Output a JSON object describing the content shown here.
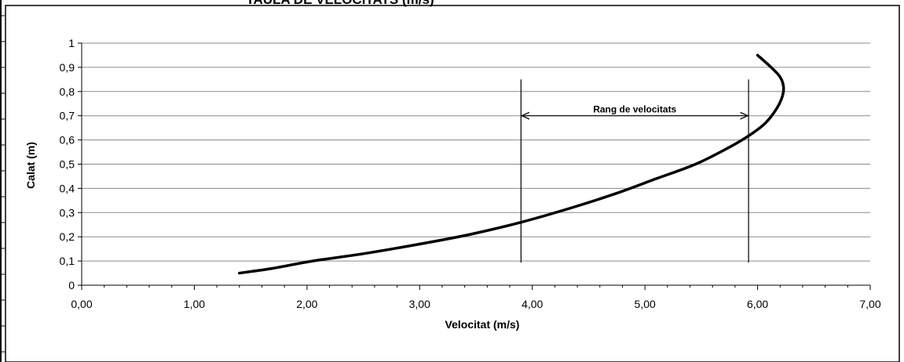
{
  "chart_data": {
    "type": "line",
    "title": "TAULA DE VELOCITATS (m/s)",
    "xlabel": "Velocitat (m/s)",
    "ylabel": "Calat (m)",
    "xlim": [
      0,
      7
    ],
    "ylim": [
      0,
      1
    ],
    "x_ticks": [
      "0,00",
      "1,00",
      "2,00",
      "3,00",
      "4,00",
      "5,00",
      "6,00",
      "7,00"
    ],
    "y_ticks": [
      "0",
      "0,1",
      "0,2",
      "0,3",
      "0,4",
      "0,5",
      "0,6",
      "0,7",
      "0,8",
      "0,9",
      "1"
    ],
    "grid": "horizontal",
    "legend": "none",
    "series": [
      {
        "x": [
          1.4,
          1.7,
          2.05,
          2.5,
          3.0,
          3.45,
          3.9,
          4.35,
          4.75,
          5.1,
          5.45,
          5.75,
          5.93,
          6.07,
          6.17,
          6.22,
          6.23,
          6.2,
          6.12,
          6.0
        ],
        "y": [
          0.05,
          0.07,
          0.1,
          0.13,
          0.17,
          0.21,
          0.26,
          0.32,
          0.38,
          0.44,
          0.5,
          0.57,
          0.62,
          0.67,
          0.73,
          0.78,
          0.82,
          0.86,
          0.9,
          0.95
        ],
        "color": "#000000"
      }
    ],
    "vlines": [
      3.9,
      5.92
    ],
    "vline_ylim": [
      0.1,
      0.85
    ],
    "annotations": [
      {
        "text": "Rang de velocitats",
        "x_from": 3.9,
        "x_to": 5.92,
        "y": 0.7
      }
    ]
  }
}
